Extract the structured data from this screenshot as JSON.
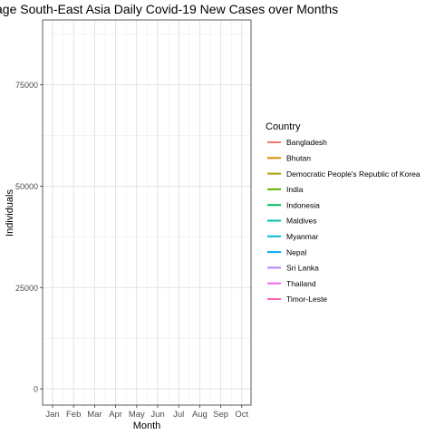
{
  "chart_data": {
    "type": "line",
    "title": "age South-East Asia Daily Covid-19 New Cases over Months",
    "xlabel": "Month",
    "ylabel": "Individuals",
    "categories": [
      "Jan",
      "Feb",
      "Mar",
      "Apr",
      "May",
      "Jun",
      "Jul",
      "Aug",
      "Sep",
      "Oct"
    ],
    "y_ticks": [
      0,
      25000,
      50000,
      75000
    ],
    "y_tick_labels": [
      "0",
      "25000",
      "50000",
      "75000"
    ],
    "ylim": [
      -4000,
      91000
    ],
    "grid": true,
    "legend": {
      "title": "Country",
      "position": "right",
      "entries": [
        {
          "name": "Bangladesh",
          "color": "#F8766D"
        },
        {
          "name": "Bhutan",
          "color": "#DB8E00"
        },
        {
          "name": "Democratic People's Republic of Korea",
          "color": "#AEA200"
        },
        {
          "name": "India",
          "color": "#64B200"
        },
        {
          "name": "Indonesia",
          "color": "#00BD5C"
        },
        {
          "name": "Maldives",
          "color": "#00C1A7"
        },
        {
          "name": "Myanmar",
          "color": "#00BADE"
        },
        {
          "name": "Nepal",
          "color": "#00A6FF"
        },
        {
          "name": "Sri Lanka",
          "color": "#B385FF"
        },
        {
          "name": "Thailand",
          "color": "#EF67EB"
        },
        {
          "name": "Timor-Leste",
          "color": "#FF63B6"
        }
      ]
    },
    "series": []
  }
}
